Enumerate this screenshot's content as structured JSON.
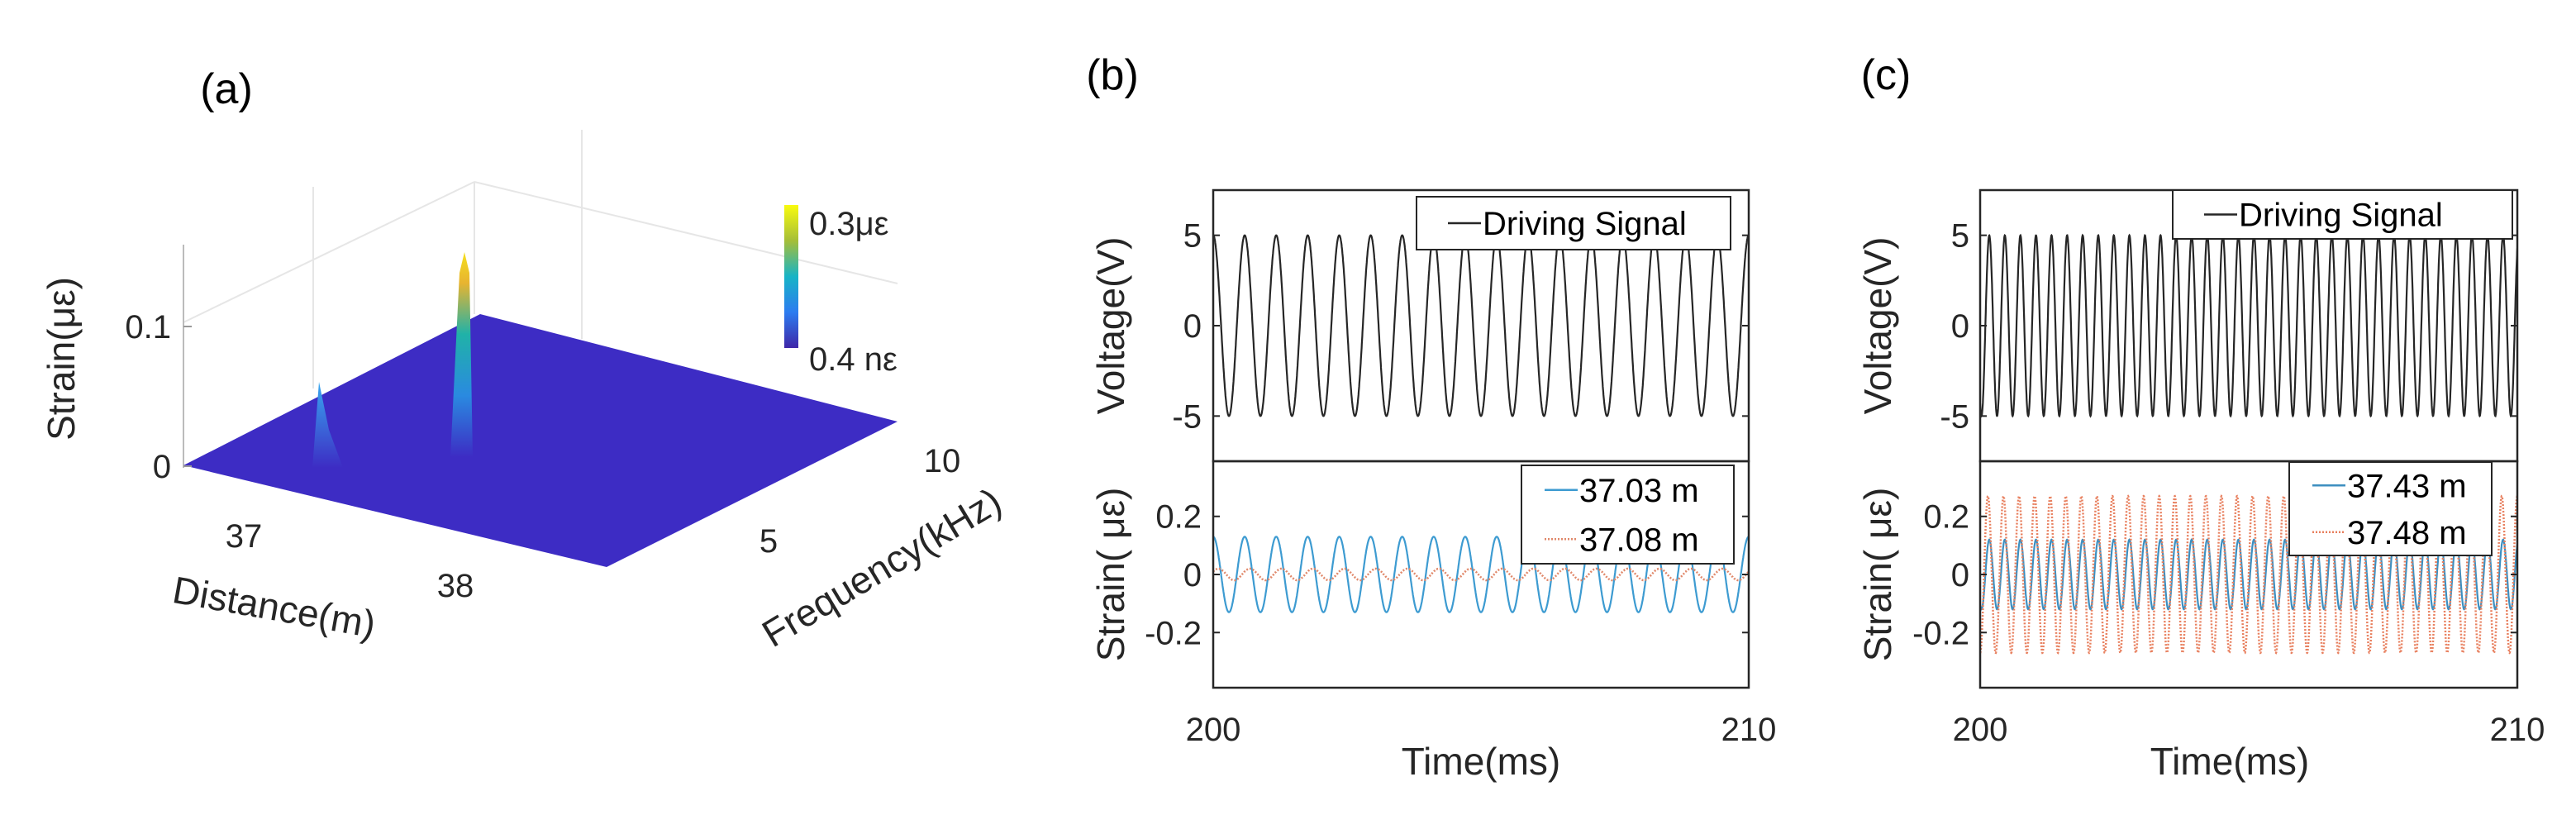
{
  "chart_data": [
    {
      "panel_label": "(a)",
      "type": "surface3d",
      "xlabel": "Distance(m)",
      "ylabel": "Frequency(kHz)",
      "zlabel": "Strain(με)",
      "x_ticks": [
        "37",
        "38"
      ],
      "y_ticks": [
        "5",
        "10"
      ],
      "z_ticks": [
        "0",
        "0.1"
      ],
      "colorbar": {
        "max_label": "0.3με",
        "min_label": "0.4 nε",
        "colormap": "parula"
      },
      "peaks": [
        {
          "distance_m": 37.05,
          "strain": 0.06
        },
        {
          "distance_m": 37.45,
          "strain": 0.15
        }
      ],
      "floor_color": "#3d2cc4"
    },
    {
      "panel_label": "(b)",
      "type": "line",
      "xlabel": "Time(ms)",
      "xlim": [
        200,
        210
      ],
      "x_ticks": [
        "200",
        "210"
      ],
      "top": {
        "ylabel": "Voltage(V)",
        "ylim": [
          -7.5,
          7.5
        ],
        "y_ticks": [
          5,
          0,
          -5
        ],
        "series": [
          {
            "name": "Driving Signal",
            "color": "#262626",
            "amplitude": 5,
            "frequency_khz": 1.7,
            "phase_deg": 0,
            "style": "solid"
          }
        ]
      },
      "bottom": {
        "ylabel": "Strain( με)",
        "ylim": [
          -0.39,
          0.39
        ],
        "y_ticks": [
          0.2,
          0,
          -0.2
        ],
        "series": [
          {
            "name": "37.03 m",
            "color": "#3d9bd1",
            "amplitude": 0.13,
            "frequency_khz": 1.7,
            "phase_deg": 0,
            "style": "solid"
          },
          {
            "name": "37.08 m",
            "color": "#e0886a",
            "amplitude": 0.02,
            "frequency_khz": 1.7,
            "phase_deg": -60,
            "style": "dotted"
          }
        ]
      }
    },
    {
      "panel_label": "(c)",
      "type": "line",
      "xlabel": "Time(ms)",
      "xlim": [
        200,
        210
      ],
      "x_ticks": [
        "200",
        "210"
      ],
      "top": {
        "ylabel": "Voltage(V)",
        "ylim": [
          -7.5,
          7.5
        ],
        "y_ticks": [
          5,
          0,
          -5
        ],
        "series": [
          {
            "name": "Driving Signal",
            "color": "#262626",
            "amplitude": 5,
            "frequency_khz": 3.45,
            "phase_deg": -211,
            "style": "solid"
          }
        ]
      },
      "bottom": {
        "ylabel": "Strain( με)",
        "ylim": [
          -0.39,
          0.39
        ],
        "y_ticks": [
          0.2,
          0,
          -0.2
        ],
        "series": [
          {
            "name": "37.43 m",
            "color": "#3d8fc0",
            "amplitude": 0.12,
            "frequency_khz": 3.45,
            "phase_deg": -211,
            "style": "solid"
          },
          {
            "name": "37.48 m",
            "color": "#e8805f",
            "amplitude": 0.27,
            "frequency_khz": 3.45,
            "phase_deg": -180,
            "style": "dotted"
          }
        ]
      }
    }
  ]
}
